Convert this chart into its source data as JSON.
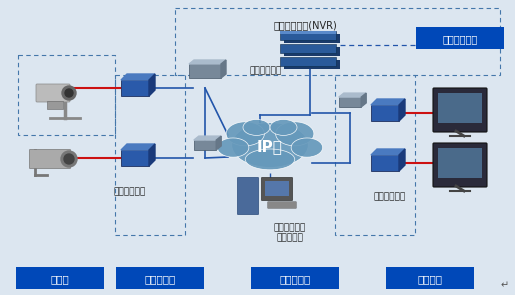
{
  "bg_color": "#dce6f0",
  "title_nvr": "网络视频存储(NVR)",
  "ip_label": "IP网",
  "switch_label": "以太网交换机",
  "encoder_label": "视音频编码器",
  "decoder_label": "视音频解码器",
  "control_label1": "控制管理平台",
  "control_label2": "视频客户端",
  "storage_box_label": "视频音频存储",
  "bottom_labels": [
    "视频源",
    "传输、交换",
    "管理、控制",
    "视频显示"
  ],
  "bottom_box_color": "#0048b8",
  "storage_box_color": "#0048b8",
  "cloud_color": "#6699bb",
  "cloud_outline": "#aaccdd",
  "dashed_color": "#4477aa",
  "line_color": "#2255aa",
  "red_line_color": "#cc1111",
  "text_color_white": "#ffffff",
  "text_color_dark": "#222222",
  "nvr_color1": "#1a3a6a",
  "nvr_color2": "#2a5a9a",
  "encoder_color1": "#1a3a7a",
  "encoder_color2": "#2a5aaa",
  "switch_color": "#4a6a9a",
  "monitor_body": "#2a2a2a",
  "monitor_screen": "#3a5a7a"
}
